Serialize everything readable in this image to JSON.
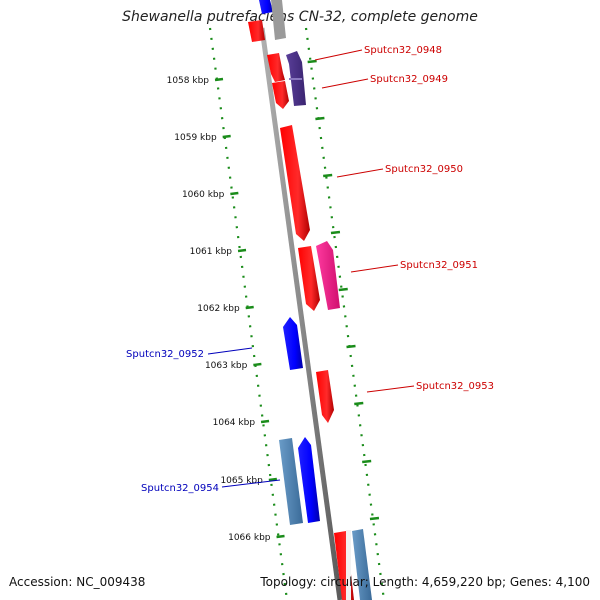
{
  "title": "Shewanella putrefaciens CN-32, complete genome",
  "footer": {
    "accession": "Accession: NC_009438",
    "summary": "Topology: circular; Length: 4,659,220 bp; Genes: 4,100"
  },
  "ticks": [
    {
      "label": "1058 kbp"
    },
    {
      "label": "1059 kbp"
    },
    {
      "label": "1060 kbp"
    },
    {
      "label": "1061 kbp"
    },
    {
      "label": "1062 kbp"
    },
    {
      "label": "1063 kbp"
    },
    {
      "label": "1064 kbp"
    },
    {
      "label": "1065 kbp"
    },
    {
      "label": "1066 kbp"
    }
  ],
  "genes": [
    {
      "label": "Sputcn32_0948",
      "color": "#cc0000"
    },
    {
      "label": "Sputcn32_0949",
      "color": "#cc0000"
    },
    {
      "label": "Sputcn32_0950",
      "color": "#cc0000"
    },
    {
      "label": "Sputcn32_0951",
      "color": "#cc0000"
    },
    {
      "label": "Sputcn32_0952",
      "color": "#0000bb"
    },
    {
      "label": "Sputcn32_0953",
      "color": "#cc0000"
    },
    {
      "label": "Sputcn32_0954",
      "color": "#0000bb"
    }
  ],
  "colors": {
    "forward_cds": "#ff0000",
    "reverse_cds": "#0000ff",
    "rna": "#4a2e8a",
    "pink_feature": "#ff1a8c",
    "steel_feature": "#4a7faf",
    "backbone": "#808080",
    "tick_dots": "#1a8c1a"
  }
}
